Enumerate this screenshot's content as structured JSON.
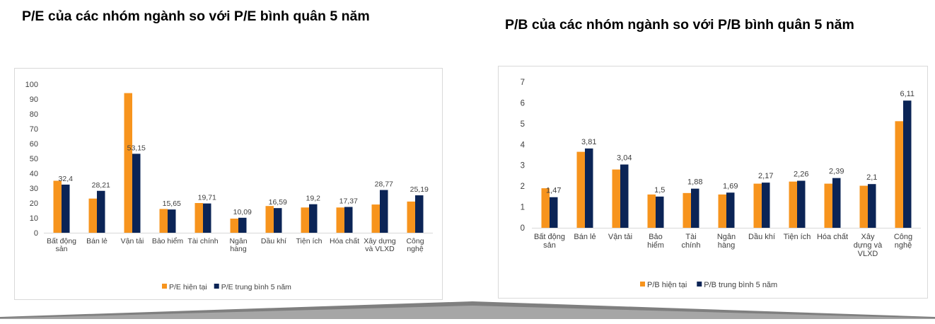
{
  "chart_data": [
    {
      "type": "bar",
      "title": "P/E của các nhóm ngành so với P/E bình quân 5 năm",
      "categories": [
        [
          "Bất động",
          "sản"
        ],
        [
          "Bán lẻ"
        ],
        [
          "Vận tải"
        ],
        [
          "Bảo hiểm"
        ],
        [
          "Tài chính"
        ],
        [
          "Ngân",
          "hàng"
        ],
        [
          "Dầu khí"
        ],
        [
          "Tiện ích"
        ],
        [
          "Hóa chất"
        ],
        [
          "Xây dựng",
          "và VLXD"
        ],
        [
          "Công",
          "nghệ"
        ]
      ],
      "series": [
        {
          "name": "P/E hiện tại",
          "color": "#f7941d",
          "values": [
            35,
            23,
            94,
            16,
            20,
            9.5,
            18,
            17,
            17,
            19,
            21
          ]
        },
        {
          "name": "P/E trung bình 5 năm",
          "color": "#0b2456",
          "values": [
            32.4,
            28.21,
            53.15,
            15.65,
            19.71,
            10.09,
            16.59,
            19.2,
            17.37,
            28.77,
            25.19
          ],
          "labels": [
            "32,4",
            "28,21",
            "53,15",
            "15,65",
            "19,71",
            "10,09",
            "16,59",
            "19,2",
            "17,37",
            "28,77",
            "25,19"
          ]
        }
      ],
      "ylim": [
        0,
        100
      ],
      "yticks": [
        "0",
        "10",
        "20",
        "30",
        "40",
        "50",
        "60",
        "70",
        "80",
        "90",
        "100"
      ],
      "grid": false,
      "legend": "bottom"
    },
    {
      "type": "bar",
      "title": "P/B của các nhóm ngành so với P/B bình quân 5 năm",
      "categories": [
        [
          "Bất động",
          "sản"
        ],
        [
          "Bán lẻ"
        ],
        [
          "Vận tải"
        ],
        [
          "Bảo",
          "hiểm"
        ],
        [
          "Tài",
          "chính"
        ],
        [
          "Ngân",
          "hàng"
        ],
        [
          "Dầu khí"
        ],
        [
          "Tiện ích"
        ],
        [
          "Hóa chất"
        ],
        [
          "Xây",
          "dựng và",
          "VLXD"
        ],
        [
          "Công",
          "nghệ"
        ]
      ],
      "series": [
        {
          "name": "P/B hiện tại",
          "color": "#f7941d",
          "values": [
            1.9,
            3.65,
            2.8,
            1.6,
            1.67,
            1.6,
            2.12,
            2.22,
            2.12,
            2.02,
            5.12
          ]
        },
        {
          "name": "P/B trung bình 5 năm",
          "color": "#0b2456",
          "values": [
            1.47,
            3.81,
            3.04,
            1.5,
            1.88,
            1.69,
            2.17,
            2.26,
            2.39,
            2.1,
            6.11
          ],
          "labels": [
            "1,47",
            "3,81",
            "3,04",
            "1,5",
            "1,88",
            "1,69",
            "2,17",
            "2,26",
            "2,39",
            "2,1",
            "6,11"
          ]
        }
      ],
      "ylim": [
        0,
        7
      ],
      "yticks": [
        "0",
        "1",
        "2",
        "3",
        "4",
        "5",
        "6",
        "7"
      ],
      "grid": false,
      "legend": "bottom"
    }
  ]
}
